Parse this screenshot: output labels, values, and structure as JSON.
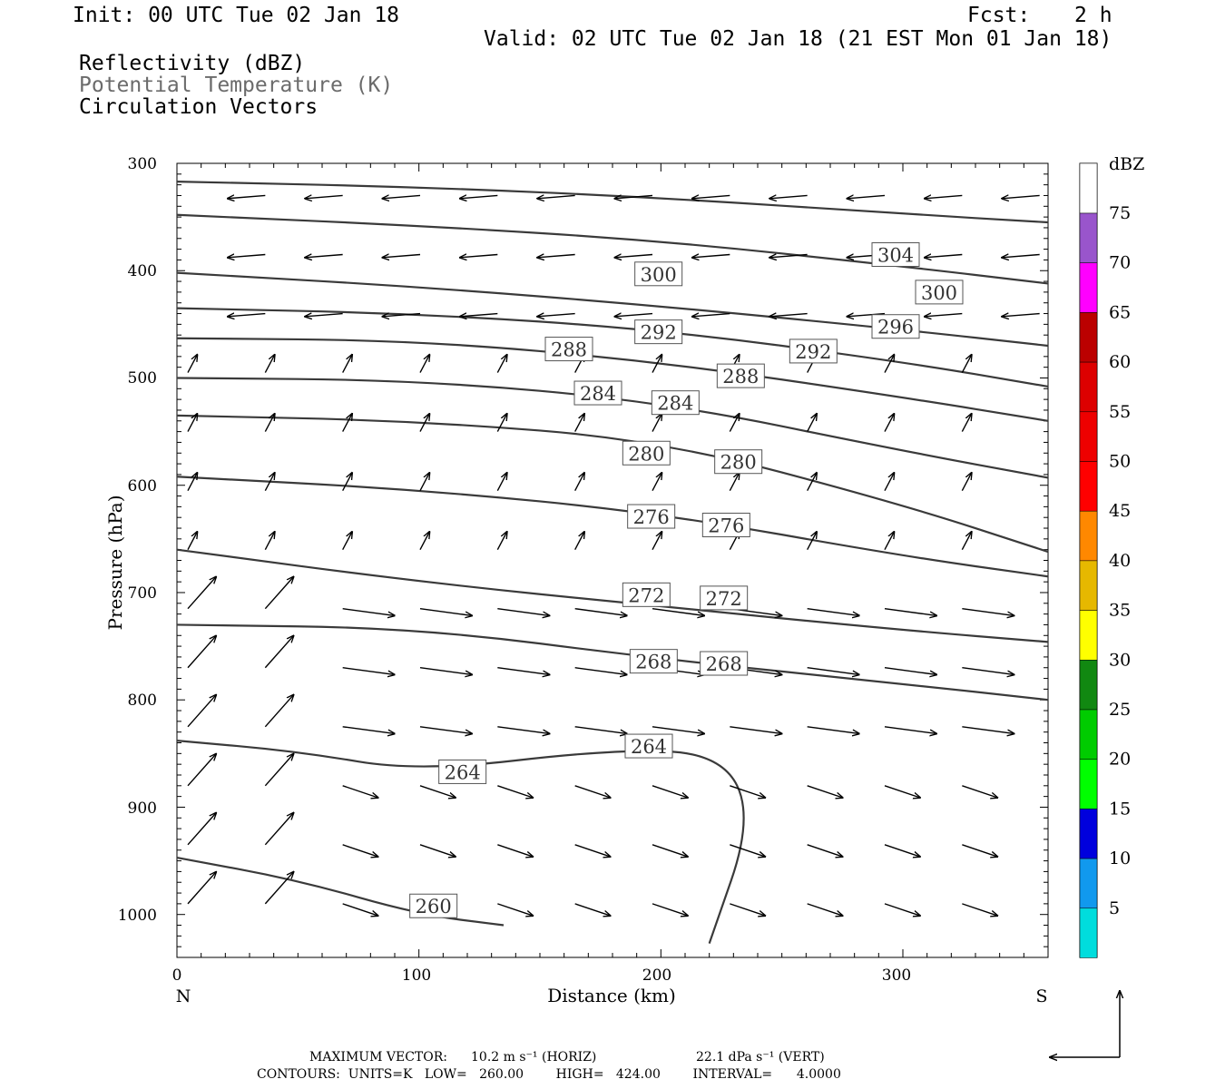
{
  "header": {
    "init": "Init: 00 UTC Tue 02 Jan 18",
    "fcst_label": "Fcst:",
    "fcst_value": "2 h",
    "valid": "Valid: 02 UTC Tue 02 Jan 18 (21 EST Mon 01 Jan 18)",
    "fields": [
      {
        "label": "Reflectivity (dBZ)",
        "color": "#000000"
      },
      {
        "label": "Potential Temperature (K)",
        "color": "#6b6b6b"
      },
      {
        "label": "Circulation Vectors",
        "color": "#000000"
      }
    ]
  },
  "chart_data": {
    "type": "contour-cross-section",
    "xlabel": "Distance (km)",
    "ylabel": "Pressure (hPa)",
    "xlim": [
      0,
      360
    ],
    "ylim": [
      300,
      1040
    ],
    "x_ticks": [
      "0",
      "100",
      "200",
      "300"
    ],
    "x_tick_values": [
      0,
      100,
      200,
      300
    ],
    "y_ticks": [
      "300",
      "400",
      "500",
      "600",
      "700",
      "800",
      "900",
      "1000"
    ],
    "y_tick_values": [
      300,
      400,
      500,
      600,
      700,
      800,
      900,
      1000
    ],
    "x_end_labels": {
      "left": "N",
      "right": "S"
    },
    "isentropes": [
      {
        "value": 304,
        "label": "304",
        "points": [
          [
            0,
            317
          ],
          [
            100,
            322
          ],
          [
            200,
            332
          ],
          [
            300,
            347
          ],
          [
            360,
            355
          ]
        ],
        "label_at": [
          [
            297,
            385
          ]
        ]
      },
      {
        "value": 300,
        "label": "300",
        "points": [
          [
            0,
            348
          ],
          [
            100,
            358
          ],
          [
            200,
            372
          ],
          [
            300,
            396
          ],
          [
            360,
            412
          ]
        ],
        "label_at": [
          [
            199,
            403
          ],
          [
            315,
            420
          ]
        ]
      },
      {
        "value": 296,
        "label": "296",
        "points": [
          [
            0,
            402
          ],
          [
            100,
            415
          ],
          [
            200,
            433
          ],
          [
            300,
            455
          ],
          [
            360,
            470
          ]
        ],
        "label_at": [
          [
            297,
            452
          ]
        ]
      },
      {
        "value": 292,
        "label": "292",
        "points": [
          [
            0,
            435
          ],
          [
            100,
            440
          ],
          [
            200,
            455
          ],
          [
            300,
            485
          ],
          [
            360,
            508
          ]
        ],
        "label_at": [
          [
            199,
            457
          ],
          [
            263,
            475
          ]
        ]
      },
      {
        "value": 288,
        "label": "288",
        "points": [
          [
            0,
            463
          ],
          [
            100,
            465
          ],
          [
            200,
            485
          ],
          [
            300,
            518
          ],
          [
            360,
            540
          ]
        ],
        "label_at": [
          [
            162,
            473
          ],
          [
            233,
            498
          ]
        ]
      },
      {
        "value": 284,
        "label": "284",
        "points": [
          [
            0,
            500
          ],
          [
            100,
            502
          ],
          [
            200,
            522
          ],
          [
            300,
            568
          ],
          [
            360,
            593
          ]
        ],
        "label_at": [
          [
            174,
            514
          ],
          [
            206,
            523
          ]
        ]
      },
      {
        "value": 280,
        "label": "280",
        "points": [
          [
            0,
            535
          ],
          [
            100,
            540
          ],
          [
            200,
            558
          ],
          [
            300,
            618
          ],
          [
            360,
            662
          ]
        ],
        "label_at": [
          [
            194,
            570
          ],
          [
            232,
            578
          ]
        ]
      },
      {
        "value": 276,
        "label": "276",
        "points": [
          [
            0,
            592
          ],
          [
            100,
            604
          ],
          [
            200,
            626
          ],
          [
            300,
            666
          ],
          [
            360,
            685
          ]
        ],
        "label_at": [
          [
            196,
            629
          ],
          [
            227,
            637
          ]
        ]
      },
      {
        "value": 272,
        "label": "272",
        "points": [
          [
            0,
            660
          ],
          [
            100,
            690
          ],
          [
            200,
            713
          ],
          [
            300,
            735
          ],
          [
            360,
            746
          ]
        ],
        "label_at": [
          [
            194,
            702
          ],
          [
            226,
            705
          ]
        ]
      },
      {
        "value": 268,
        "label": "268",
        "points": [
          [
            0,
            730
          ],
          [
            100,
            733
          ],
          [
            200,
            762
          ],
          [
            300,
            785
          ],
          [
            360,
            800
          ]
        ],
        "label_at": [
          [
            197,
            764
          ],
          [
            226,
            766
          ]
        ]
      },
      {
        "value": 264,
        "label": "264",
        "points": [
          [
            0,
            838
          ],
          [
            50,
            848
          ],
          [
            100,
            867
          ],
          [
            180,
            846
          ],
          [
            225,
            850
          ],
          [
            238,
            910
          ],
          [
            220,
            1027
          ]
        ],
        "label_at": [
          [
            118,
            867
          ],
          [
            195,
            843
          ]
        ]
      },
      {
        "value": 260,
        "label": "260",
        "points": [
          [
            0,
            947
          ],
          [
            50,
            968
          ],
          [
            100,
            1000
          ],
          [
            135,
            1010
          ]
        ],
        "label_at": [
          [
            106,
            992
          ]
        ]
      }
    ],
    "max_vector_horiz": "10.2 m s⁻¹ (HORIZ)",
    "max_vector_vert": "22.1 dPa s⁻¹ (VERT)"
  },
  "colorbar": {
    "title": "dBZ",
    "bins": [
      {
        "label": "75",
        "color": "#9955cc"
      },
      {
        "label": "70",
        "color": "#ff00ff"
      },
      {
        "label": "65",
        "color": "#bb0000"
      },
      {
        "label": "60",
        "color": "#dd0000"
      },
      {
        "label": "55",
        "color": "#ee0000"
      },
      {
        "label": "50",
        "color": "#ff0000"
      },
      {
        "label": "45",
        "color": "#ff8800"
      },
      {
        "label": "40",
        "color": "#e6b800"
      },
      {
        "label": "35",
        "color": "#ffff00"
      },
      {
        "label": "30",
        "color": "#118811"
      },
      {
        "label": "25",
        "color": "#00cc00"
      },
      {
        "label": "20",
        "color": "#00ff00"
      },
      {
        "label": "15",
        "color": "#0000dd"
      },
      {
        "label": "10",
        "color": "#1199ee"
      },
      {
        "label": "5",
        "color": "#00dddd"
      }
    ]
  },
  "footer": {
    "max_vector_label": "MAXIMUM VECTOR:",
    "contours_line": "CONTOURS:  UNITS=K   LOW=   260.00        HIGH=   424.00        INTERVAL=      4.0000"
  }
}
